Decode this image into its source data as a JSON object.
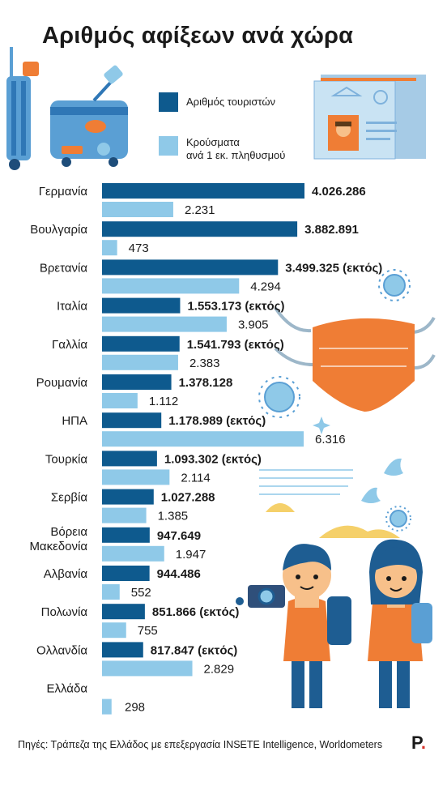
{
  "title": "Αριθμός αφίξεων ανά χώρα",
  "legend": {
    "tourists": "Αριθμός τουριστών",
    "cases_line1": "Κρούσματα",
    "cases_line2": "ανά 1 εκ. πληθυσμού"
  },
  "colors": {
    "tourists": "#0e5a8e",
    "cases": "#8fc9e8",
    "accent": "#ef7d35"
  },
  "illustrations": [
    "suitcases",
    "passport",
    "face-mask",
    "virus",
    "birds",
    "clouds",
    "tourists"
  ],
  "footer": "Πηγές: Τράπεζα της Ελλάδος με επεξεργασία INSETE Intelligence, Worldometers",
  "brand": {
    "letter": "P",
    "dot": "."
  },
  "chart_data": {
    "type": "bar",
    "orientation": "horizontal",
    "categories": [
      "Γερμανία",
      "Βουλγαρία",
      "Βρετανία",
      "Ιταλία",
      "Γαλλία",
      "Ρουμανία",
      "ΗΠΑ",
      "Τουρκία",
      "Σερβία",
      "Βόρεια Μακεδονία",
      "Αλβανία",
      "Πολωνία",
      "Ολλανδία",
      "Ελλάδα"
    ],
    "series": [
      {
        "name": "Αριθμός τουριστών",
        "values": [
          4026286,
          3882891,
          3499325,
          1553173,
          1541793,
          1378128,
          1178989,
          1093302,
          1027288,
          947649,
          944486,
          851866,
          817847,
          null
        ],
        "labels": [
          "4.026.286",
          "3.882.891",
          "3.499.325 (εκτός)",
          "1.553.173  (εκτός)",
          "1.541.793 (εκτός)",
          "1.378.128",
          "1.178.989 (εκτός)",
          "1.093.302 (εκτός)",
          "1.027.288",
          "947.649",
          "944.486",
          "851.866 (εκτός)",
          "817.847 (εκτός)",
          ""
        ]
      },
      {
        "name": "Κρούσματα ανά 1 εκ. πληθυσμού",
        "values": [
          2231,
          473,
          4294,
          3905,
          2383,
          1112,
          6316,
          2114,
          1385,
          1947,
          552,
          755,
          2829,
          298
        ],
        "labels": [
          "2.231",
          "473",
          "4.294",
          "3.905",
          "2.383",
          "1.112",
          "6.316",
          "2.114",
          "1.385",
          "1.947",
          "552",
          "755",
          "2.829",
          "298"
        ]
      }
    ]
  }
}
